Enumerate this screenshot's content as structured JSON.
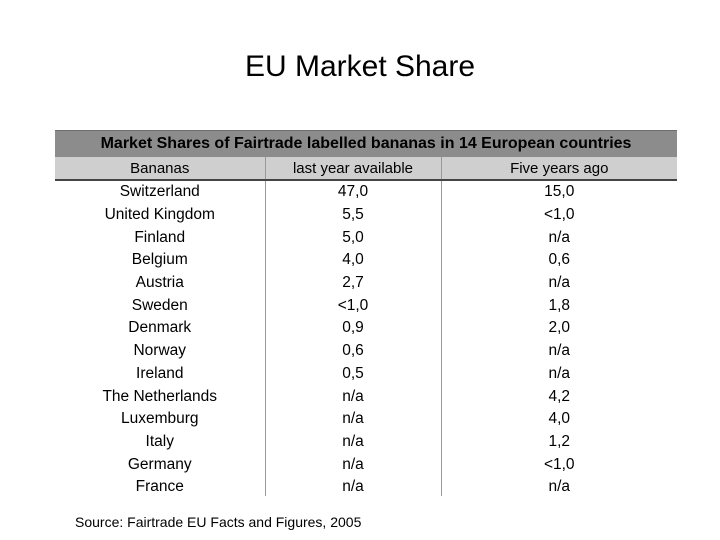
{
  "slide": {
    "title": "EU Market Share",
    "source": "Source: Fairtrade EU Facts and Figures, 2005"
  },
  "table": {
    "caption": "Market Shares of Fairtrade labelled bananas in 14 European countries",
    "headers": [
      "Bananas",
      "last year available",
      "Five years ago"
    ],
    "rows": [
      [
        "Switzerland",
        "47,0",
        "15,0"
      ],
      [
        "United Kingdom",
        "5,5",
        "<1,0"
      ],
      [
        "Finland",
        "5,0",
        "n/a"
      ],
      [
        "Belgium",
        "4,0",
        "0,6"
      ],
      [
        "Austria",
        "2,7",
        "n/a"
      ],
      [
        "Sweden",
        "<1,0",
        "1,8"
      ],
      [
        "Denmark",
        "0,9",
        "2,0"
      ],
      [
        "Norway",
        "0,6",
        "n/a"
      ],
      [
        "Ireland",
        "0,5",
        "n/a"
      ],
      [
        "The Netherlands",
        "n/a",
        "4,2"
      ],
      [
        "Luxemburg",
        "n/a",
        "4,0"
      ],
      [
        "Italy",
        "n/a",
        "1,2"
      ],
      [
        "Germany",
        "n/a",
        "<1,0"
      ],
      [
        "France",
        "n/a",
        "n/a"
      ]
    ],
    "colors": {
      "caption_bg": "#8c8c8c",
      "header_bg": "#cfcfcf"
    }
  }
}
